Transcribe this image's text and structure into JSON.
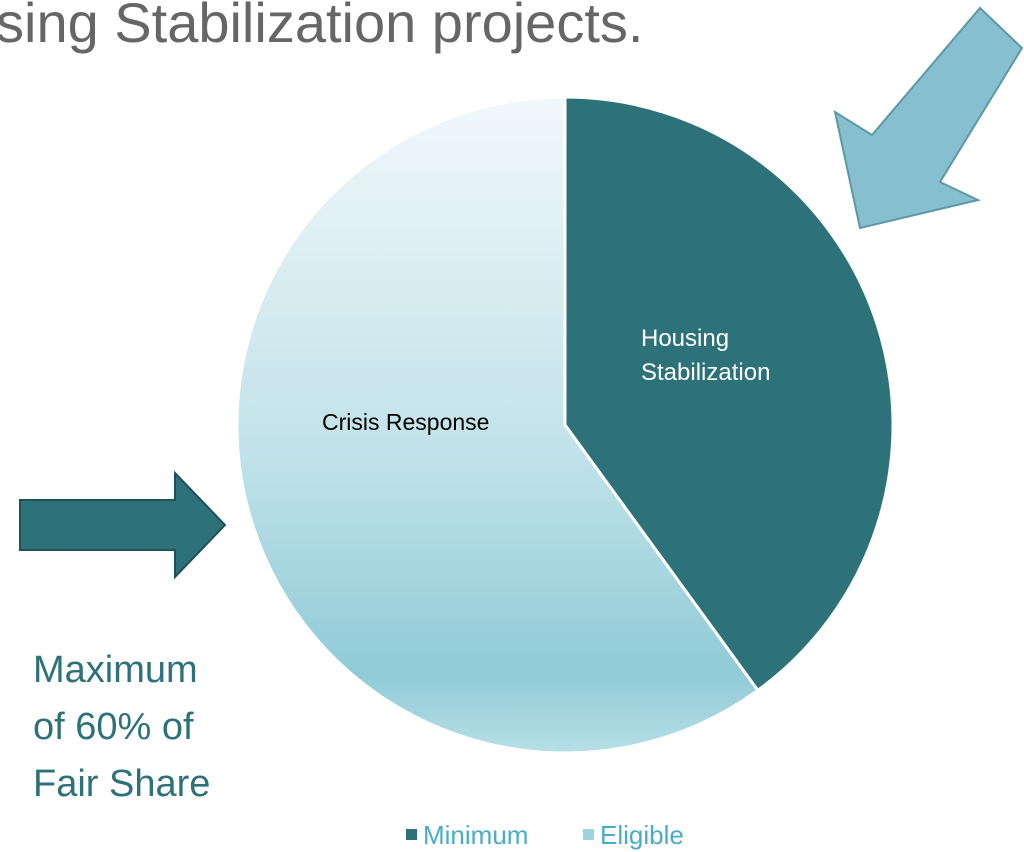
{
  "chart_data": {
    "type": "pie",
    "title": "sing Stabilization projects.",
    "categories": [
      "Minimum",
      "Eligible"
    ],
    "slice_labels": [
      "Housing Stabilization",
      "Crisis Response"
    ],
    "values": [
      40,
      60
    ],
    "colors": [
      "#2e7279",
      "url(#lightGrad)"
    ],
    "legend_colors": [
      "#2e7279",
      "#9fd3dd"
    ],
    "legend": "bottom",
    "annotation": [
      "Maximum",
      "of 60% of",
      "Fair Share"
    ]
  }
}
